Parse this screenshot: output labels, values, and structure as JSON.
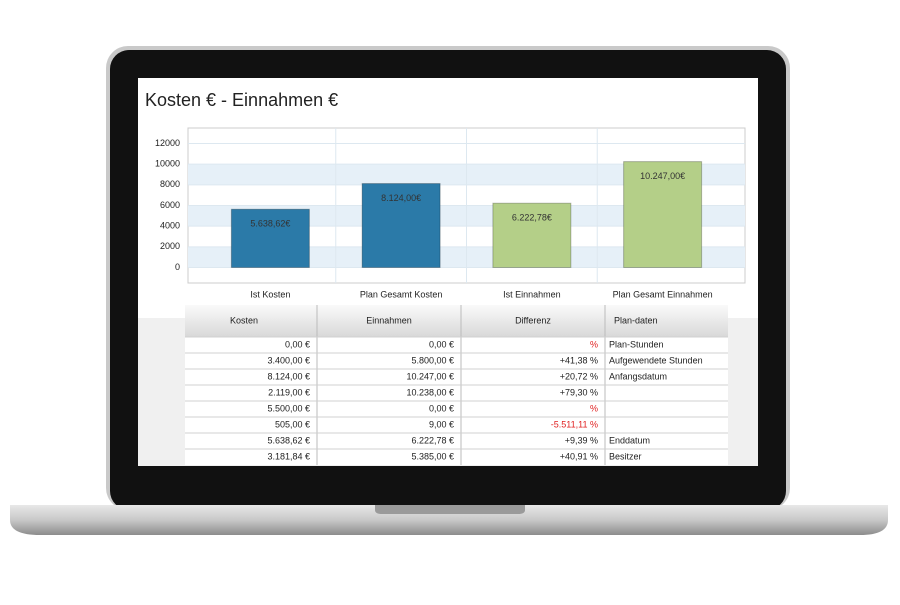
{
  "chart_data": {
    "type": "bar",
    "title": "Kosten € - Einnahmen €",
    "categories": [
      "Ist Kosten",
      "Plan Gesamt Kosten",
      "Ist Einnahmen",
      "Plan Gesamt Einnahmen"
    ],
    "values": [
      5638.62,
      8124,
      6222.78,
      10247
    ],
    "value_labels": [
      "5.638,62€",
      "8.124,00€",
      "6.222,78€",
      "10.247,00€"
    ],
    "colors": [
      "#2b7aa8",
      "#2b7aa8",
      "#b4cf88",
      "#b4cf88"
    ],
    "ylim": [
      -1500,
      13500
    ],
    "yticks": [
      0,
      2000,
      4000,
      6000,
      8000,
      10000,
      12000
    ],
    "grid": true
  },
  "table": {
    "columns": [
      "Kosten",
      "Einnahmen",
      "Differenz",
      "Plan-daten"
    ],
    "rows": [
      [
        "0,00 €",
        "0,00 €",
        "%",
        "Plan-Stunden"
      ],
      [
        "3.400,00 €",
        "5.800,00 €",
        "+41,38 %",
        "Aufgewendete Stunden"
      ],
      [
        "8.124,00 €",
        "10.247,00 €",
        "+20,72 %",
        "Anfangsdatum"
      ],
      [
        "2.119,00 €",
        "10.238,00 €",
        "+79,30 %",
        null
      ],
      [
        "5.500,00 €",
        "0,00 €",
        "%",
        null
      ],
      [
        "505,00 €",
        "9,00 €",
        "-5.511,11 %",
        null
      ],
      [
        "5.638,62 €",
        "6.222,78 €",
        "+9,39 %",
        "Enddatum"
      ],
      [
        "3.181,84 €",
        "5.385,00 €",
        "+40,91 %",
        "Besitzer"
      ]
    ]
  }
}
